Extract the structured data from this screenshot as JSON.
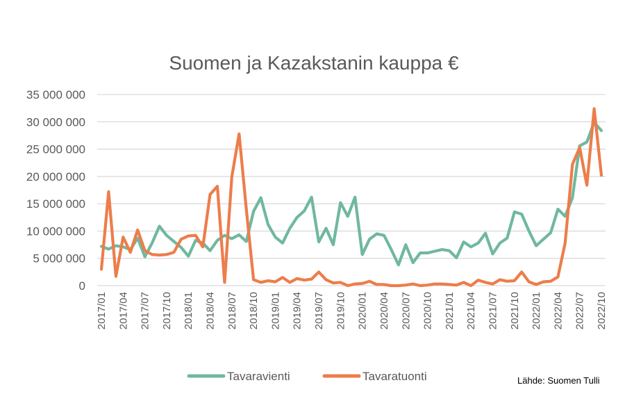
{
  "chart_data": {
    "type": "line",
    "title": "Suomen ja Kazakstanin kauppa €",
    "xlabel": "",
    "ylabel": "",
    "ylim": [
      0,
      35000000
    ],
    "yticks": [
      "0",
      "5 000 000",
      "10 000 000",
      "15 000 000",
      "20 000 000",
      "25 000 000",
      "30 000 000",
      "35 000 000"
    ],
    "ytick_values": [
      0,
      5000000,
      10000000,
      15000000,
      20000000,
      25000000,
      30000000,
      35000000
    ],
    "x": [
      "2017/01",
      "2017/02",
      "2017/03",
      "2017/04",
      "2017/05",
      "2017/06",
      "2017/07",
      "2017/08",
      "2017/09",
      "2017/10",
      "2017/11",
      "2017/12",
      "2018/01",
      "2018/02",
      "2018/03",
      "2018/04",
      "2018/05",
      "2018/06",
      "2018/07",
      "2018/08",
      "2018/09",
      "2018/10",
      "2018/11",
      "2018/12",
      "2019/01",
      "2019/02",
      "2019/03",
      "2019/04",
      "2019/05",
      "2019/06",
      "2019/07",
      "2019/08",
      "2019/09",
      "2019/10",
      "2019/11",
      "2019/12",
      "2020/01",
      "2020/02",
      "2020/03",
      "2020/04",
      "2020/05",
      "2020/06",
      "2020/07",
      "2020/08",
      "2020/09",
      "2020/10",
      "2020/11",
      "2020/12",
      "2021/01",
      "2021/02",
      "2021/03",
      "2021/04",
      "2021/05",
      "2021/06",
      "2021/07",
      "2021/08",
      "2021/09",
      "2021/10",
      "2021/11",
      "2021/12",
      "2022/01",
      "2022/02",
      "2022/03",
      "2022/04",
      "2022/05",
      "2022/06",
      "2022/07",
      "2022/08",
      "2022/09",
      "2022/10"
    ],
    "xtick_labels": [
      "2017/01",
      "2017/04",
      "2017/07",
      "2017/10",
      "2018/01",
      "2018/04",
      "2018/07",
      "2018/10",
      "2019/01",
      "2019/04",
      "2019/07",
      "2019/10",
      "2020/01",
      "2020/04",
      "2020/07",
      "2020/10",
      "2021/01",
      "2021/04",
      "2021/07",
      "2021/10",
      "2022/01",
      "2022/04",
      "2022/07",
      "2022/10"
    ],
    "grid": true,
    "legend_position": "bottom",
    "series": [
      {
        "name": "Tavaravienti",
        "color": "#70B89E",
        "values": [
          7200000,
          6700000,
          7300000,
          7100000,
          6600000,
          8700000,
          5300000,
          7800000,
          10900000,
          9200000,
          8100000,
          7000000,
          5400000,
          8300000,
          7800000,
          6400000,
          8300000,
          9200000,
          8600000,
          9300000,
          8100000,
          13600000,
          16100000,
          11200000,
          8900000,
          7800000,
          10500000,
          12500000,
          13700000,
          16200000,
          8000000,
          10500000,
          7500000,
          15200000,
          12700000,
          16200000,
          5700000,
          8500000,
          9500000,
          9200000,
          6600000,
          3800000,
          7500000,
          4200000,
          6000000,
          6000000,
          6300000,
          6600000,
          6400000,
          5100000,
          8000000,
          7100000,
          7800000,
          9600000,
          5800000,
          7800000,
          8700000,
          13500000,
          13100000,
          10000000,
          7300000,
          8500000,
          9700000,
          14000000,
          12700000,
          16100000,
          25600000,
          26300000,
          29900000,
          28400000
        ]
      },
      {
        "name": "Tavaratuonti",
        "color": "#ED7D4A",
        "values": [
          3000000,
          17200000,
          1700000,
          8900000,
          6100000,
          10200000,
          6400000,
          5700000,
          5600000,
          5700000,
          6100000,
          8500000,
          9100000,
          9200000,
          7100000,
          16700000,
          18200000,
          600000,
          19900000,
          27800000,
          14000000,
          1100000,
          600000,
          900000,
          700000,
          1500000,
          600000,
          1300000,
          1000000,
          1200000,
          2500000,
          1100000,
          500000,
          600000,
          0,
          300000,
          400000,
          800000,
          200000,
          200000,
          0,
          0,
          100000,
          300000,
          0,
          100000,
          300000,
          300000,
          200000,
          100000,
          600000,
          0,
          1000000,
          600000,
          300000,
          1100000,
          800000,
          900000,
          2500000,
          700000,
          200000,
          700000,
          800000,
          1600000,
          7800000,
          22200000,
          25300000,
          18400000,
          32400000,
          20200000
        ]
      }
    ],
    "source": "Lähde: Suomen Tulli"
  }
}
